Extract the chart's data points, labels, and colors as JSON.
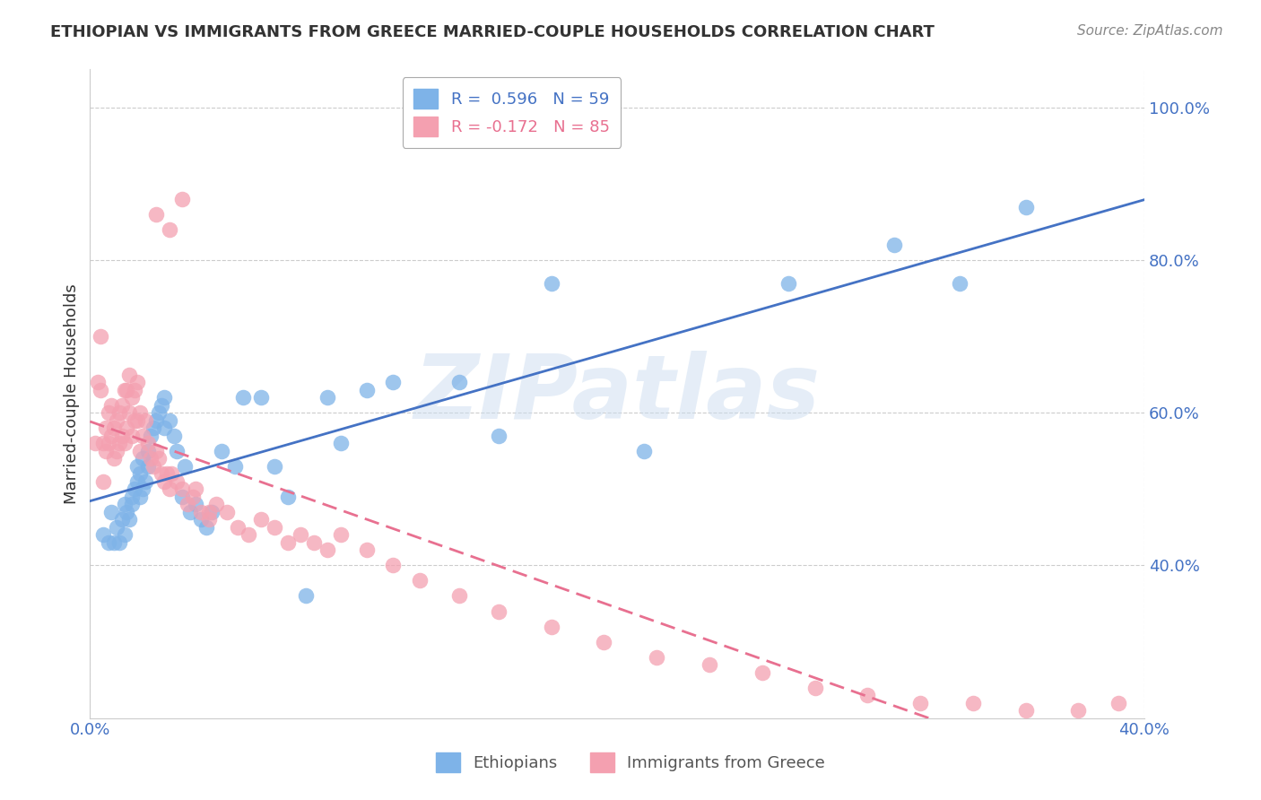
{
  "title": "ETHIOPIAN VS IMMIGRANTS FROM GREECE MARRIED-COUPLE HOUSEHOLDS CORRELATION CHART",
  "source": "Source: ZipAtlas.com",
  "ylabel": "Married-couple Households",
  "watermark": "ZIPatlas",
  "series1_label": "Ethiopians",
  "series2_label": "Immigrants from Greece",
  "series1_color": "#7EB3E8",
  "series2_color": "#F4A0B0",
  "series1_line_color": "#4472C4",
  "series2_line_color": "#E87090",
  "R1": 0.596,
  "N1": 59,
  "R2": -0.172,
  "N2": 85,
  "xlim": [
    0.0,
    0.4
  ],
  "ylim": [
    0.2,
    1.05
  ],
  "yticks": [
    0.4,
    0.6,
    0.8,
    1.0
  ],
  "ytick_labels": [
    "40.0%",
    "60.0%",
    "80.0%",
    "100.0%"
  ],
  "xticks": [
    0.0,
    0.4
  ],
  "xtick_labels": [
    "0.0%",
    "40.0%"
  ],
  "background_color": "#FFFFFF",
  "grid_color": "#CCCCCC",
  "title_color": "#333333",
  "axis_color": "#4472C4",
  "series1_x": [
    0.005,
    0.007,
    0.008,
    0.009,
    0.01,
    0.011,
    0.012,
    0.013,
    0.013,
    0.014,
    0.015,
    0.016,
    0.016,
    0.017,
    0.018,
    0.018,
    0.019,
    0.019,
    0.02,
    0.02,
    0.021,
    0.022,
    0.022,
    0.023,
    0.024,
    0.025,
    0.026,
    0.027,
    0.028,
    0.028,
    0.03,
    0.032,
    0.033,
    0.035,
    0.036,
    0.038,
    0.04,
    0.042,
    0.044,
    0.046,
    0.05,
    0.055,
    0.058,
    0.065,
    0.07,
    0.075,
    0.082,
    0.09,
    0.095,
    0.105,
    0.115,
    0.14,
    0.155,
    0.175,
    0.21,
    0.265,
    0.305,
    0.33,
    0.355
  ],
  "series1_y": [
    0.44,
    0.43,
    0.47,
    0.43,
    0.45,
    0.43,
    0.46,
    0.44,
    0.48,
    0.47,
    0.46,
    0.49,
    0.48,
    0.5,
    0.51,
    0.53,
    0.52,
    0.49,
    0.54,
    0.5,
    0.51,
    0.53,
    0.55,
    0.57,
    0.58,
    0.59,
    0.6,
    0.61,
    0.58,
    0.62,
    0.59,
    0.57,
    0.55,
    0.49,
    0.53,
    0.47,
    0.48,
    0.46,
    0.45,
    0.47,
    0.55,
    0.53,
    0.62,
    0.62,
    0.53,
    0.49,
    0.36,
    0.62,
    0.56,
    0.63,
    0.64,
    0.64,
    0.57,
    0.77,
    0.55,
    0.77,
    0.82,
    0.77,
    0.87
  ],
  "series2_x": [
    0.002,
    0.003,
    0.004,
    0.004,
    0.005,
    0.005,
    0.006,
    0.006,
    0.007,
    0.007,
    0.008,
    0.008,
    0.009,
    0.009,
    0.01,
    0.01,
    0.011,
    0.011,
    0.012,
    0.012,
    0.013,
    0.013,
    0.014,
    0.014,
    0.015,
    0.015,
    0.016,
    0.016,
    0.017,
    0.017,
    0.018,
    0.018,
    0.019,
    0.019,
    0.02,
    0.021,
    0.022,
    0.023,
    0.024,
    0.025,
    0.026,
    0.027,
    0.028,
    0.029,
    0.03,
    0.031,
    0.033,
    0.035,
    0.037,
    0.039,
    0.042,
    0.045,
    0.048,
    0.052,
    0.056,
    0.06,
    0.065,
    0.07,
    0.075,
    0.08,
    0.085,
    0.09,
    0.095,
    0.105,
    0.115,
    0.125,
    0.14,
    0.155,
    0.175,
    0.195,
    0.215,
    0.235,
    0.255,
    0.275,
    0.295,
    0.315,
    0.335,
    0.355,
    0.375,
    0.39,
    0.025,
    0.03,
    0.035,
    0.04,
    0.045
  ],
  "series2_y": [
    0.56,
    0.64,
    0.63,
    0.7,
    0.51,
    0.56,
    0.55,
    0.58,
    0.56,
    0.6,
    0.57,
    0.61,
    0.54,
    0.58,
    0.55,
    0.59,
    0.56,
    0.6,
    0.57,
    0.61,
    0.56,
    0.63,
    0.58,
    0.63,
    0.6,
    0.65,
    0.57,
    0.62,
    0.59,
    0.63,
    0.59,
    0.64,
    0.6,
    0.55,
    0.57,
    0.59,
    0.56,
    0.54,
    0.53,
    0.55,
    0.54,
    0.52,
    0.51,
    0.52,
    0.5,
    0.52,
    0.51,
    0.5,
    0.48,
    0.49,
    0.47,
    0.46,
    0.48,
    0.47,
    0.45,
    0.44,
    0.46,
    0.45,
    0.43,
    0.44,
    0.43,
    0.42,
    0.44,
    0.42,
    0.4,
    0.38,
    0.36,
    0.34,
    0.32,
    0.3,
    0.28,
    0.27,
    0.26,
    0.24,
    0.23,
    0.22,
    0.22,
    0.21,
    0.21,
    0.22,
    0.86,
    0.84,
    0.88,
    0.5,
    0.47
  ]
}
